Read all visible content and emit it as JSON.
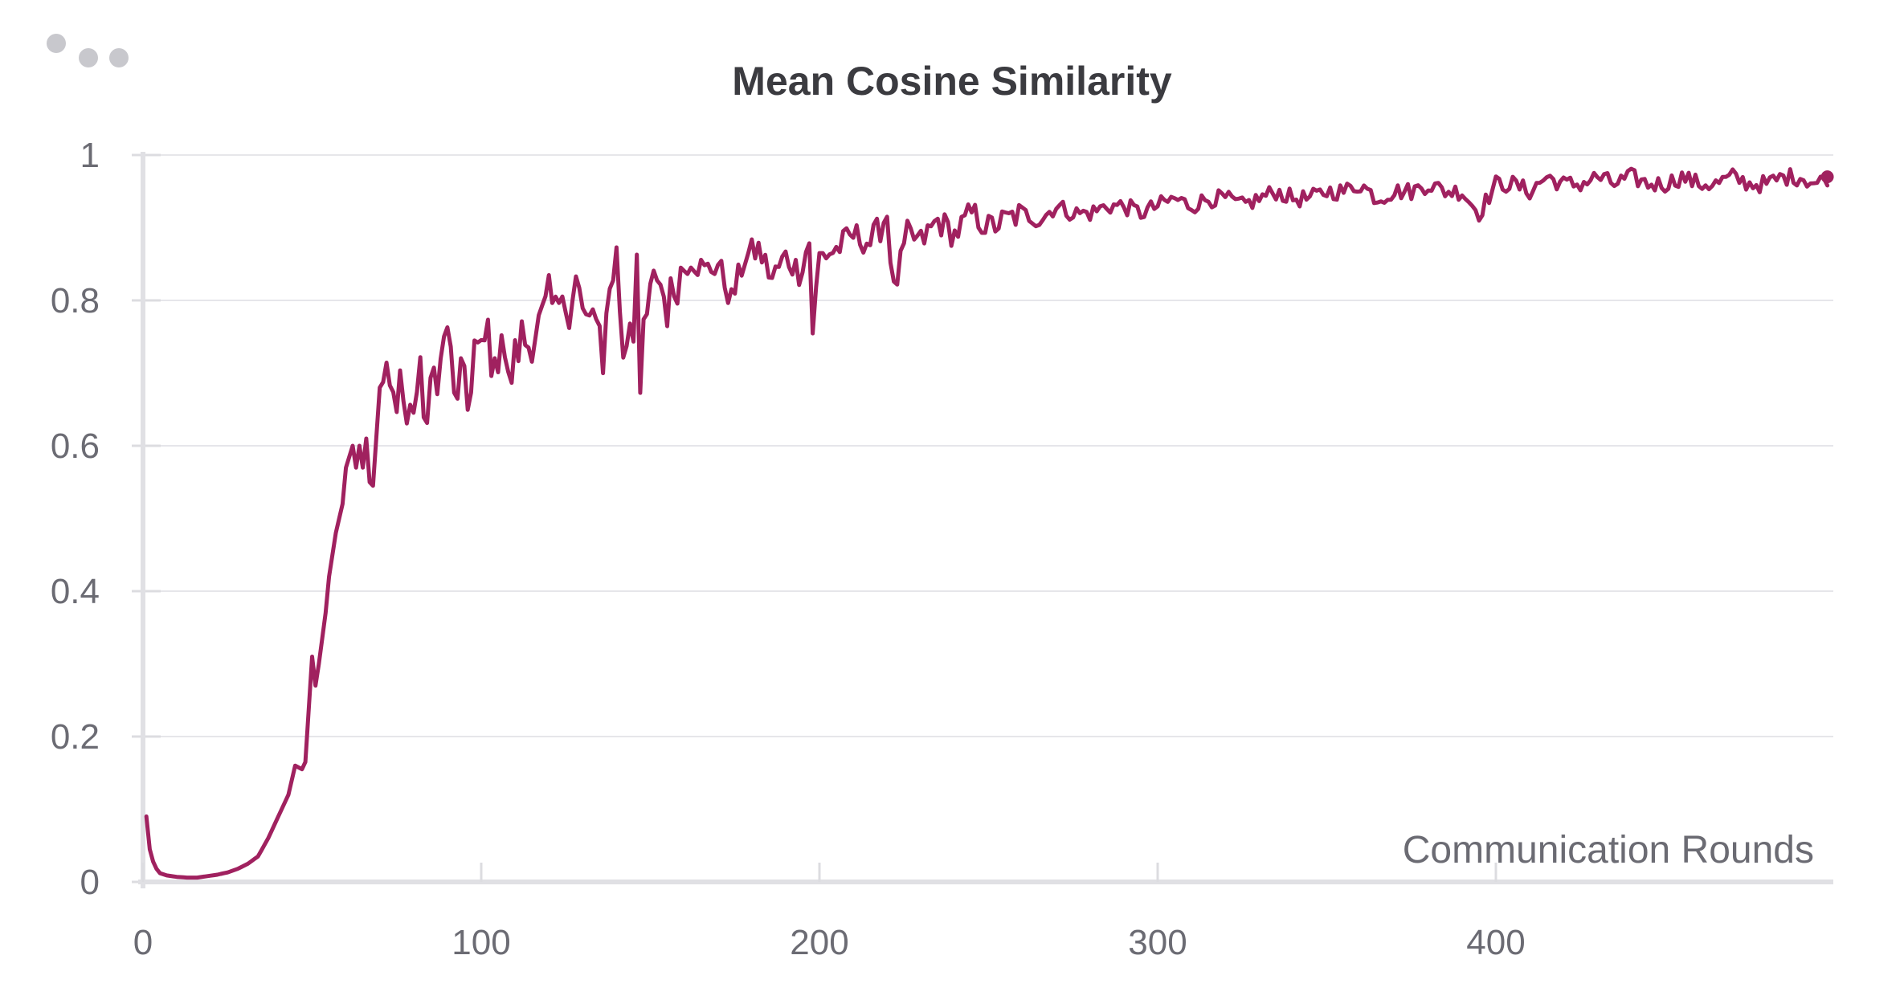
{
  "chart_data": {
    "type": "line",
    "title": "Mean Cosine Similarity",
    "xlabel": "Communication Rounds",
    "ylabel": "",
    "xlim": [
      0,
      500
    ],
    "ylim": [
      0,
      1
    ],
    "x_ticks": [
      0,
      100,
      200,
      300,
      400
    ],
    "x_tick_labels": [
      "0",
      "100",
      "200",
      "300",
      "400"
    ],
    "y_ticks": [
      0,
      0.2,
      0.4,
      0.6,
      0.8,
      1
    ],
    "y_tick_labels": [
      "0",
      "0.2",
      "0.4",
      "0.6",
      "0.8",
      "1"
    ],
    "grid": true,
    "legend": "none",
    "line_color": "#a0215f",
    "series": [
      {
        "x": [
          1,
          2,
          3,
          4,
          5,
          7,
          10,
          13,
          16,
          19,
          22,
          25,
          28,
          31,
          34,
          37,
          40,
          43,
          45,
          47,
          48,
          50,
          51,
          52,
          54,
          55,
          57,
          58,
          59,
          60,
          62,
          63,
          64,
          65,
          66,
          67,
          68,
          70,
          72,
          74,
          76,
          78,
          80,
          82,
          84,
          86,
          88,
          90,
          92,
          94,
          96,
          98,
          100,
          102,
          104,
          106,
          108,
          110,
          112,
          114,
          116,
          118,
          120,
          122,
          124,
          126,
          128,
          130,
          132,
          134,
          136,
          138,
          140,
          142,
          144,
          145,
          146,
          147,
          148,
          150,
          152,
          155,
          158,
          162,
          166,
          170,
          174,
          178,
          182,
          186,
          190,
          194,
          197,
          198,
          200,
          205,
          210,
          215,
          218,
          220,
          222,
          226,
          230,
          235,
          240,
          245,
          250,
          255,
          260,
          265,
          270,
          275,
          280,
          285,
          290,
          295,
          300,
          305,
          310,
          315,
          320,
          325,
          330,
          335,
          340,
          345,
          350,
          355,
          360,
          365,
          370,
          375,
          380,
          385,
          390,
          395,
          400,
          405,
          410,
          415,
          420,
          425,
          430,
          435,
          440,
          445,
          450,
          455,
          460,
          465,
          470,
          475,
          480,
          485,
          490,
          495,
          498
        ],
        "y": [
          0.09,
          0.045,
          0.028,
          0.018,
          0.012,
          0.009,
          0.007,
          0.006,
          0.006,
          0.008,
          0.01,
          0.013,
          0.018,
          0.025,
          0.035,
          0.06,
          0.09,
          0.12,
          0.16,
          0.155,
          0.165,
          0.31,
          0.27,
          0.3,
          0.37,
          0.42,
          0.48,
          0.5,
          0.52,
          0.57,
          0.6,
          0.57,
          0.6,
          0.57,
          0.61,
          0.55,
          0.545,
          0.68,
          0.69,
          0.66,
          0.7,
          0.63,
          0.66,
          0.69,
          0.63,
          0.7,
          0.71,
          0.77,
          0.66,
          0.7,
          0.65,
          0.74,
          0.72,
          0.76,
          0.69,
          0.77,
          0.68,
          0.72,
          0.75,
          0.74,
          0.76,
          0.77,
          0.8,
          0.78,
          0.84,
          0.76,
          0.82,
          0.79,
          0.75,
          0.8,
          0.72,
          0.82,
          0.86,
          0.73,
          0.78,
          0.77,
          0.86,
          0.64,
          0.76,
          0.8,
          0.84,
          0.79,
          0.83,
          0.86,
          0.84,
          0.85,
          0.8,
          0.86,
          0.87,
          0.83,
          0.86,
          0.84,
          0.88,
          0.76,
          0.86,
          0.87,
          0.89,
          0.88,
          0.9,
          0.92,
          0.81,
          0.89,
          0.88,
          0.91,
          0.89,
          0.92,
          0.9,
          0.91,
          0.92,
          0.91,
          0.93,
          0.92,
          0.92,
          0.93,
          0.93,
          0.92,
          0.93,
          0.94,
          0.93,
          0.94,
          0.94,
          0.93,
          0.94,
          0.95,
          0.94,
          0.94,
          0.95,
          0.95,
          0.96,
          0.94,
          0.95,
          0.95,
          0.96,
          0.95,
          0.95,
          0.92,
          0.96,
          0.96,
          0.95,
          0.97,
          0.96,
          0.96,
          0.97,
          0.96,
          0.97,
          0.96,
          0.96,
          0.97,
          0.96,
          0.96,
          0.97,
          0.96,
          0.96,
          0.97,
          0.97,
          0.96,
          0.97
        ]
      }
    ]
  }
}
